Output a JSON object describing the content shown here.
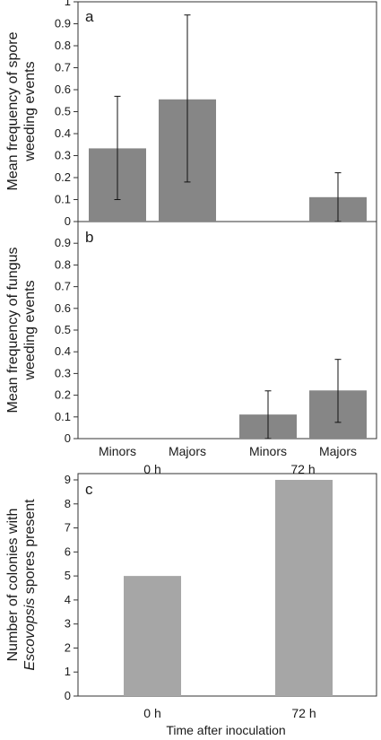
{
  "chart_data": [
    {
      "type": "bar",
      "panel": "a",
      "ylabel_lines": [
        "Mean frequency of spore",
        "weeding events"
      ],
      "ylim": [
        0,
        1
      ],
      "yticks": [
        "0",
        "0.1",
        "0.2",
        "0.3",
        "0.4",
        "0.5",
        "0.6",
        "0.7",
        "0.8",
        "0.9",
        "1"
      ],
      "categories": [
        "Minors",
        "Majors",
        "Minors",
        "Majors"
      ],
      "groups": [
        "0 h",
        "0 h",
        "72 h",
        "72 h"
      ],
      "values": [
        0.333,
        0.556,
        0,
        0.111
      ],
      "error_low": [
        0.1,
        0.18,
        0,
        0.0
      ],
      "error_high": [
        0.57,
        0.94,
        0,
        0.222
      ],
      "bar_color": "#868686",
      "grid": false
    },
    {
      "type": "bar",
      "panel": "b",
      "ylabel_lines": [
        "Mean frequency of fungus",
        "weeding events"
      ],
      "ylim": [
        0,
        1
      ],
      "yticks": [
        "0",
        "0.1",
        "0.2",
        "0.3",
        "0.4",
        "0.5",
        "0.6",
        "0.7",
        "0.8",
        "0.9"
      ],
      "categories": [
        "Minors",
        "Majors",
        "Minors",
        "Majors"
      ],
      "groups": [
        "0 h",
        "0 h",
        "72 h",
        "72 h"
      ],
      "group_labels": [
        "0 h",
        "72 h"
      ],
      "values": [
        0,
        0,
        0.111,
        0.222
      ],
      "error_low": [
        0,
        0,
        0.0,
        0.075
      ],
      "error_high": [
        0,
        0,
        0.22,
        0.365
      ],
      "bar_color": "#868686",
      "grid": false
    },
    {
      "type": "bar",
      "panel": "c",
      "ylabel_line1": "Number of colonies with",
      "ylabel_italic": "Escovopsis",
      "ylabel_rest": " spores present",
      "ylim": [
        0,
        9
      ],
      "yticks": [
        "0",
        "1",
        "2",
        "3",
        "4",
        "5",
        "6",
        "7",
        "8",
        "9"
      ],
      "categories": [
        "0 h",
        "72 h"
      ],
      "values": [
        5,
        9
      ],
      "xlabel": "Time after inoculation",
      "bar_color": "#a6a6a6",
      "grid": false
    }
  ]
}
